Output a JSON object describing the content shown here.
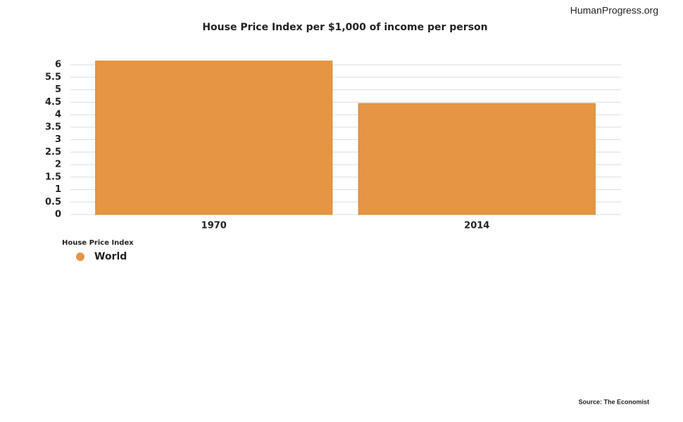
{
  "chart_data": {
    "type": "bar",
    "title": "House Price Index per $1,000 of income per person",
    "watermark": "HumanProgress.org",
    "source": "Source: The Economist",
    "legend_title": "House Price Index",
    "categories": [
      "1970",
      "2014"
    ],
    "series": [
      {
        "name": "World",
        "color": "#e59544",
        "values": [
          6.15,
          4.45
        ]
      }
    ],
    "ylim": [
      0,
      6.2
    ],
    "yticks": [
      0,
      0.5,
      1,
      1.5,
      2,
      2.5,
      3,
      3.5,
      4,
      4.5,
      5,
      5.5,
      6
    ],
    "grid": true
  }
}
